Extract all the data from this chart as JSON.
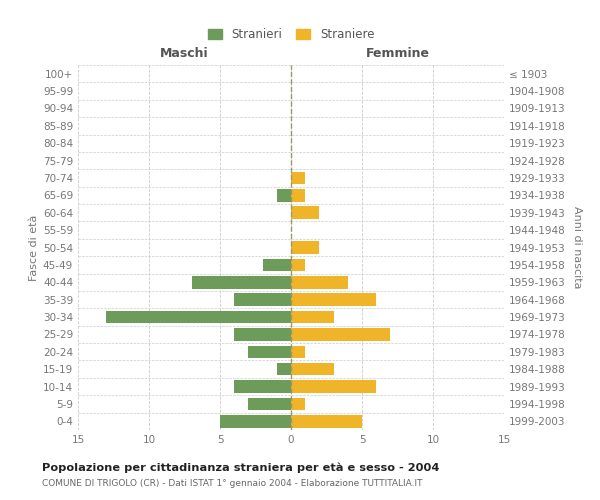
{
  "age_groups": [
    "0-4",
    "5-9",
    "10-14",
    "15-19",
    "20-24",
    "25-29",
    "30-34",
    "35-39",
    "40-44",
    "45-49",
    "50-54",
    "55-59",
    "60-64",
    "65-69",
    "70-74",
    "75-79",
    "80-84",
    "85-89",
    "90-94",
    "95-99",
    "100+"
  ],
  "birth_years": [
    "1999-2003",
    "1994-1998",
    "1989-1993",
    "1984-1988",
    "1979-1983",
    "1974-1978",
    "1969-1973",
    "1964-1968",
    "1959-1963",
    "1954-1958",
    "1949-1953",
    "1944-1948",
    "1939-1943",
    "1934-1938",
    "1929-1933",
    "1924-1928",
    "1919-1923",
    "1914-1918",
    "1909-1913",
    "1904-1908",
    "≤ 1903"
  ],
  "maschi": [
    5,
    3,
    4,
    1,
    3,
    4,
    13,
    4,
    7,
    2,
    0,
    0,
    0,
    1,
    0,
    0,
    0,
    0,
    0,
    0,
    0
  ],
  "femmine": [
    5,
    1,
    6,
    3,
    1,
    7,
    3,
    6,
    4,
    1,
    2,
    0,
    2,
    1,
    1,
    0,
    0,
    0,
    0,
    0,
    0
  ],
  "color_maschi": "#6d9b5a",
  "color_femmine": "#f0b429",
  "title": "Popolazione per cittadinanza straniera per età e sesso - 2004",
  "subtitle": "COMUNE DI TRIGOLO (CR) - Dati ISTAT 1° gennaio 2004 - Elaborazione TUTTITALIA.IT",
  "ylabel_left": "Fasce di età",
  "ylabel_right": "Anni di nascita",
  "xlabel_maschi": "Maschi",
  "xlabel_femmine": "Femmine",
  "legend_maschi": "Stranieri",
  "legend_femmine": "Straniere",
  "xlim": 15,
  "background_color": "#ffffff",
  "grid_color": "#cccccc"
}
